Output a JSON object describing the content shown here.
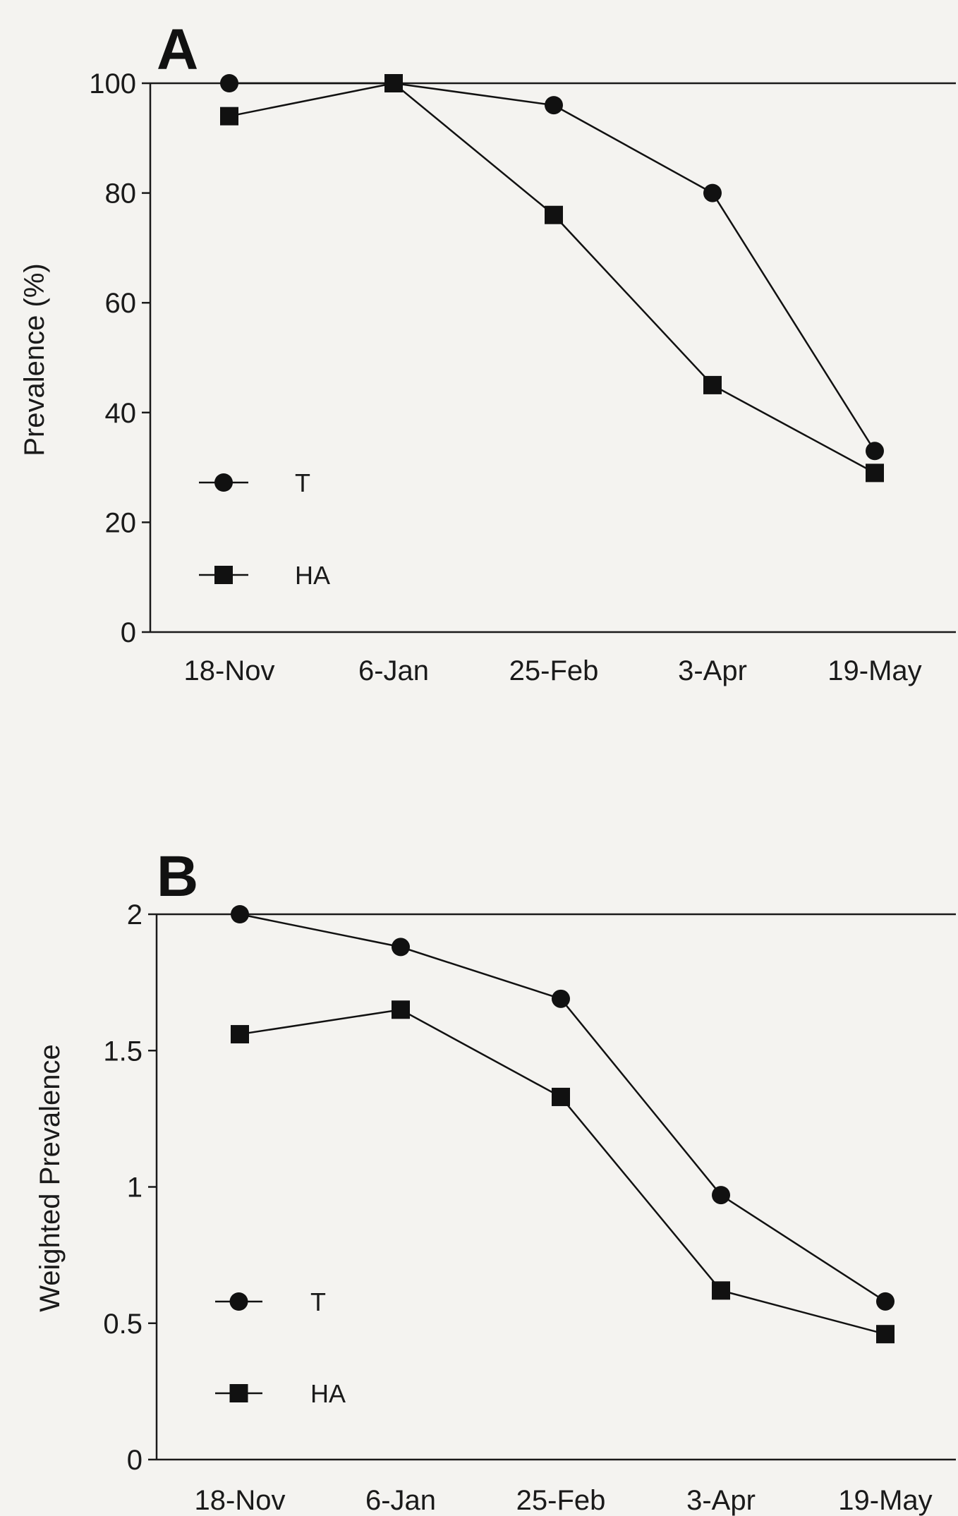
{
  "chart_data": [
    {
      "panel_label": "A",
      "type": "line",
      "categories": [
        "18-Nov",
        "6-Jan",
        "25-Feb",
        "3-Apr",
        "19-May"
      ],
      "ylabel": "Prevalence (%)",
      "xlabel": "",
      "ylim": [
        0,
        100
      ],
      "yticks": [
        "0",
        "20",
        "40",
        "60",
        "80",
        "100"
      ],
      "ytick_values": [
        0,
        20,
        40,
        60,
        80,
        100
      ],
      "legend_placement": "lower-left",
      "series": [
        {
          "name": "T",
          "marker": "circle",
          "values": [
            100,
            100,
            96,
            80,
            33
          ]
        },
        {
          "name": "HA",
          "marker": "square",
          "values": [
            94,
            100,
            76,
            45,
            29
          ]
        }
      ]
    },
    {
      "panel_label": "B",
      "type": "line",
      "categories": [
        "18-Nov",
        "6-Jan",
        "25-Feb",
        "3-Apr",
        "19-May"
      ],
      "ylabel": "Weighted Prevalence",
      "xlabel": "",
      "ylim": [
        0,
        2
      ],
      "yticks": [
        "0",
        "0.5",
        "1",
        "1.5",
        "2"
      ],
      "ytick_values": [
        0,
        0.5,
        1,
        1.5,
        2
      ],
      "legend_placement": "lower-left",
      "series": [
        {
          "name": "T",
          "marker": "circle",
          "values": [
            2.0,
            1.88,
            1.69,
            0.97,
            0.58
          ]
        },
        {
          "name": "HA",
          "marker": "square",
          "values": [
            1.56,
            1.65,
            1.33,
            0.62,
            0.46
          ]
        }
      ]
    }
  ],
  "colors": {
    "ink": "#111111",
    "background": "#f4f3f0"
  }
}
